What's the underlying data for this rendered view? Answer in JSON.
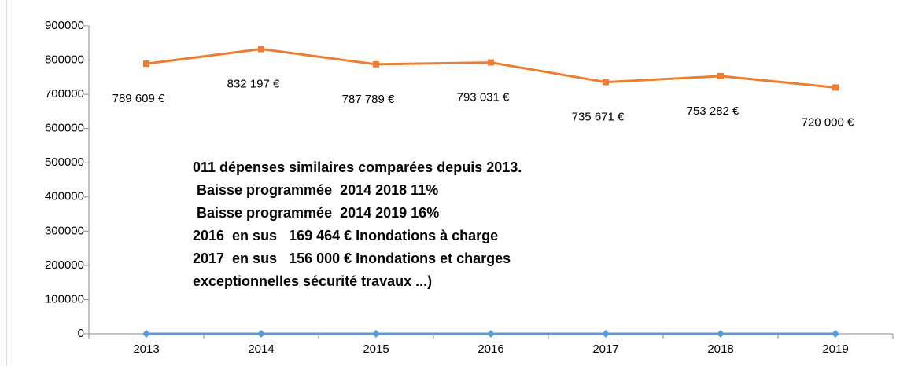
{
  "chart_data": {
    "type": "line",
    "categories": [
      "2013",
      "2014",
      "2015",
      "2016",
      "2017",
      "2018",
      "2019"
    ],
    "series": [
      {
        "color": "#ed7d31",
        "marker": "square",
        "values": [
          789609,
          832197,
          787789,
          793031,
          735671,
          753282,
          720000
        ],
        "value_labels": [
          "789 609 €",
          "832 197 €",
          "787 789 €",
          "793 031 €",
          "735 671 €",
          "753 282 €",
          "720 000 €"
        ]
      },
      {
        "color": "#5b9bd5",
        "marker": "diamond",
        "values": [
          0,
          0,
          0,
          0,
          0,
          0,
          0
        ]
      }
    ],
    "ylim": [
      0,
      900000
    ],
    "yticks": [
      0,
      100000,
      200000,
      300000,
      400000,
      500000,
      600000,
      700000,
      800000,
      900000
    ],
    "grid": false,
    "annotations": [
      "011 dépenses similaires comparées depuis 2013.",
      " Baisse programmée  2014 2018 11%",
      " Baisse programmée  2014 2019 16%",
      "2016  en sus   169 464 € Inondations à charge",
      "2017  en sus   156 000 € Inondations et charges",
      "exceptionnelles sécurité travaux ...)"
    ]
  }
}
